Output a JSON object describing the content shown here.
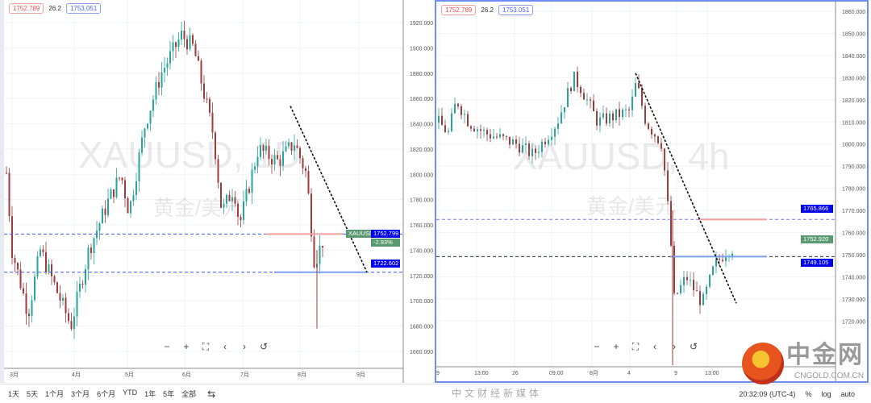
{
  "left": {
    "price_low": "1752.789",
    "spread": "26.2",
    "price_high": "1753.051",
    "watermark": "XAUUSD, 1D",
    "sub_watermark": "黄金/美元",
    "y_ticks": [
      "1920.000",
      "1900.000",
      "1880.000",
      "1860.000",
      "1840.000",
      "1820.000",
      "1800.000",
      "1780.000",
      "1760.000",
      "1740.000",
      "1720.000",
      "1700.000",
      "1680.000",
      "1660.000"
    ],
    "x_ticks": [
      "3月",
      "4月",
      "5月",
      "6月",
      "7月",
      "8月",
      "9月"
    ],
    "symbol_tag": "XAUUSD",
    "last_price": "1752.799",
    "change": "-2.93%",
    "line_price": "1722.602"
  },
  "right": {
    "price_low": "1752.789",
    "spread": "26.2",
    "price_high": "1753.051",
    "watermark": "XAUUSD, 4h",
    "sub_watermark": "黄金/美元",
    "y_ticks": [
      "1860.000",
      "1850.000",
      "1840.000",
      "1830.000",
      "1820.000",
      "1810.000",
      "1800.000",
      "1790.000",
      "1780.000",
      "1770.000",
      "1760.000",
      "1750.000",
      "1740.000",
      "1730.000",
      "1720.000"
    ],
    "x_ticks": [
      "9",
      "13:00",
      "26",
      "09:00",
      "8月",
      "4",
      "9",
      "13:00"
    ],
    "level_1": "1765.866",
    "last_price": "1752.920",
    "level_2": "1749.105"
  },
  "nav": {
    "zoom_out": "−",
    "zoom_in": "+",
    "fit": "⛶",
    "prev": "‹",
    "next": "›",
    "reset": "↺"
  },
  "bottom": {
    "ranges": [
      "1天",
      "5天",
      "1个月",
      "3个月",
      "6个月",
      "YTD",
      "1年",
      "5年",
      "全部"
    ],
    "time": "20:32:09 (UTC-4)",
    "pct": "%",
    "log": "log",
    "auto": "auto"
  },
  "logo": {
    "text": "中金网",
    "site": "CNGOLD.COM.CN",
    "tagline": "中文财经新媒体"
  },
  "colors": {
    "up": "#26a69a",
    "down": "#a33a3a",
    "accent": "#0000ff"
  }
}
